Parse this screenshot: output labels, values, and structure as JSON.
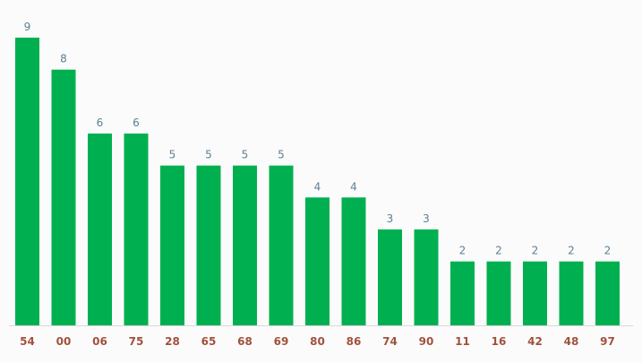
{
  "colors": {
    "bar": "#00b050",
    "value_label": "#5b7f95",
    "category_label": "#a0523d",
    "background": "#fbfbfb",
    "baseline": "#d9d9d9"
  },
  "chart_data": {
    "type": "bar",
    "title": "",
    "xlabel": "",
    "ylabel": "",
    "categories": [
      "54",
      "00",
      "06",
      "75",
      "28",
      "65",
      "68",
      "69",
      "80",
      "86",
      "74",
      "90",
      "11",
      "16",
      "42",
      "48",
      "97"
    ],
    "values": [
      9,
      8,
      6,
      6,
      5,
      5,
      5,
      5,
      4,
      4,
      3,
      3,
      2,
      2,
      2,
      2,
      2
    ],
    "ylim": [
      0,
      9
    ],
    "grid": false,
    "legend": "none",
    "data_labels": true
  }
}
